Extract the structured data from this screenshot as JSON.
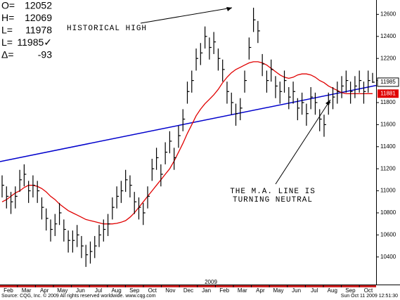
{
  "chart_data": {
    "type": "ohlc",
    "header": {
      "labels": [
        "O=",
        "H=",
        "L=",
        "L=",
        "Δ="
      ],
      "values": [
        12052,
        12069,
        11978,
        "11985✓",
        -93
      ]
    },
    "annotations": [
      "HISTORICAL HIGH",
      "THE M.A. LINE IS",
      "TURNING NEUTRAL"
    ],
    "categories": [
      "Feb",
      "Mar",
      "Apr",
      "May",
      "Jun",
      "Jul",
      "Aug",
      "Sep",
      "Oct",
      "Nov",
      "Dec",
      "Jan",
      "Feb",
      "Mar",
      "Apr",
      "May",
      "Jun",
      "Jul",
      "Aug",
      "Sep",
      "Oct"
    ],
    "year_label": "2009",
    "source": "Source: CQG, Inc. © 2009 All rights reserved worldwide. www.cqg.com",
    "timestamp": "Sun Oct 11 2009 12:51:30",
    "bar_color": "#000000",
    "high": [
      11140,
      11040,
      10990,
      11040,
      11190,
      11240,
      11090,
      11140,
      11090,
      10940,
      10840,
      10740,
      10790,
      10890,
      10740,
      10640,
      10640,
      10690,
      10590,
      10510,
      10540,
      10590,
      10690,
      10740,
      10790,
      10940,
      11040,
      11090,
      11190,
      11140,
      10990,
      10940,
      10890,
      11040,
      11290,
      11390,
      11240,
      11440,
      11540,
      11390,
      11590,
      11740,
      11990,
      12090,
      12290,
      12340,
      12490,
      12390,
      12440,
      12290,
      12190,
      11990,
      11890,
      11790,
      11840,
      12090,
      12390,
      12660,
      12540,
      12240,
      12090,
      12190,
      12040,
      11990,
      12090,
      11940,
      11990,
      11840,
      11890,
      11790,
      11940,
      11890,
      11740,
      11690,
      11890,
      11940,
      11990,
      12040,
      12090,
      11990,
      12040,
      12090,
      11990,
      12090,
      12069
    ],
    "low": [
      10940,
      10840,
      10790,
      10840,
      10990,
      11040,
      10890,
      10940,
      10890,
      10740,
      10640,
      10540,
      10590,
      10690,
      10540,
      10440,
      10440,
      10490,
      10390,
      10310,
      10340,
      10390,
      10490,
      10540,
      10590,
      10740,
      10840,
      10890,
      10990,
      10940,
      10790,
      10740,
      10690,
      10840,
      11090,
      11190,
      11040,
      11240,
      11340,
      11190,
      11390,
      11540,
      11790,
      11890,
      12090,
      12140,
      12290,
      12190,
      12240,
      12090,
      11990,
      11790,
      11690,
      11590,
      11640,
      11890,
      12190,
      12440,
      12340,
      12040,
      11890,
      11990,
      11840,
      11790,
      11890,
      11740,
      11790,
      11640,
      11690,
      11590,
      11740,
      11690,
      11540,
      11490,
      11690,
      11740,
      11790,
      11840,
      11890,
      11790,
      11840,
      11890,
      11790,
      11890,
      11978
    ],
    "close": [
      11050,
      10950,
      10900,
      10950,
      11100,
      11150,
      11000,
      11050,
      11000,
      10850,
      10750,
      10650,
      10700,
      10800,
      10650,
      10550,
      10550,
      10600,
      10500,
      10420,
      10450,
      10500,
      10600,
      10650,
      10700,
      10850,
      10950,
      11000,
      11100,
      11050,
      10900,
      10850,
      10800,
      10950,
      11200,
      11300,
      11150,
      11350,
      11450,
      11300,
      11500,
      11650,
      11900,
      12000,
      12200,
      12250,
      12400,
      12300,
      12350,
      12200,
      12100,
      11900,
      11800,
      11700,
      11750,
      12000,
      12300,
      12550,
      12450,
      12150,
      12000,
      12100,
      11950,
      11900,
      12000,
      11850,
      11900,
      11750,
      11800,
      11700,
      11850,
      11800,
      11650,
      11600,
      11800,
      11850,
      11900,
      11950,
      12000,
      11900,
      11950,
      12000,
      11900,
      12000,
      11985
    ],
    "ma": {
      "color": "#e00000",
      "values": [
        10900,
        10920,
        10950,
        10980,
        11000,
        11030,
        11050,
        11050,
        11040,
        11020,
        10990,
        10950,
        10920,
        10880,
        10850,
        10820,
        10800,
        10780,
        10760,
        10740,
        10730,
        10720,
        10710,
        10700,
        10700,
        10700,
        10705,
        10715,
        10730,
        10760,
        10800,
        10850,
        10900,
        10950,
        11000,
        11050,
        11100,
        11150,
        11200,
        11270,
        11350,
        11430,
        11520,
        11600,
        11680,
        11740,
        11790,
        11830,
        11870,
        11920,
        11980,
        12030,
        12070,
        12100,
        12120,
        12140,
        12160,
        12170,
        12170,
        12160,
        12140,
        12110,
        12080,
        12050,
        12030,
        12020,
        12030,
        12050,
        12060,
        12060,
        12050,
        12030,
        12000,
        11980,
        11950,
        11930,
        11910,
        11890,
        11880,
        11880,
        11880,
        11880,
        11880,
        11881,
        11881
      ]
    },
    "trendline": {
      "color": "#0000cc",
      "values": [
        11265,
        11955
      ]
    },
    "ylim": [
      10150,
      12730
    ],
    "yticks": [
      10400,
      10600,
      10800,
      11000,
      11200,
      11400,
      11600,
      11800,
      12000,
      12200,
      12400,
      12600
    ]
  }
}
